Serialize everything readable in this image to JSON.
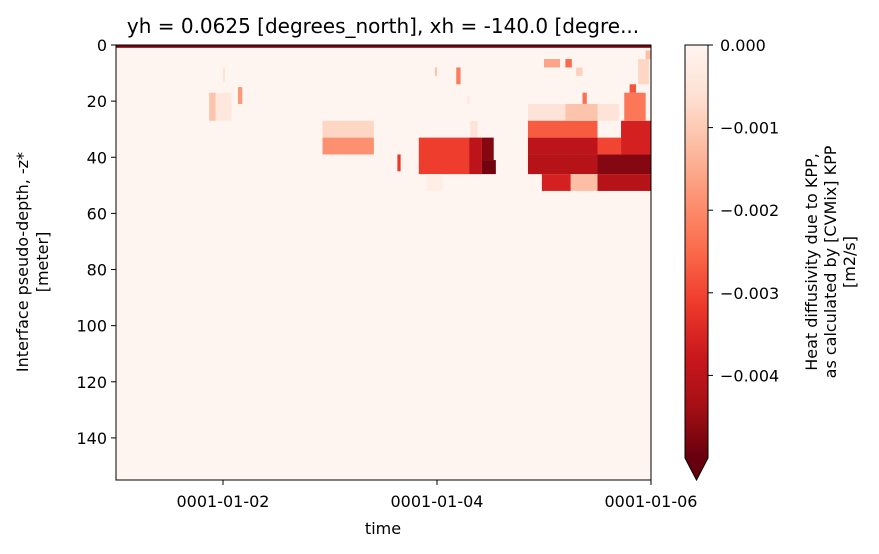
{
  "chart_data": {
    "type": "heatmap",
    "title": "yh = 0.0625 [degrees_north], xh = -140.0 [degre...",
    "xlabel": "time",
    "ylabel_lines": [
      "Interface pseudo-depth, -z*",
      "[meter]"
    ],
    "x_range_days": [
      1.0,
      6.0
    ],
    "y_range": [
      155,
      0
    ],
    "x_ticks": [
      {
        "value": 2,
        "label": "0001-01-02"
      },
      {
        "value": 4,
        "label": "0001-01-04"
      },
      {
        "value": 6,
        "label": "0001-01-06"
      }
    ],
    "y_ticks": [
      0,
      20,
      40,
      60,
      80,
      100,
      120,
      140
    ],
    "y_tick_labels": [
      "0",
      "20",
      "40",
      "60",
      "80",
      "100",
      "120",
      "140"
    ],
    "colorbar": {
      "label_lines": [
        "Heat diffusivity due to KPP,",
        "as calculated by [CVMix] KPP",
        "[m2/s]"
      ],
      "vmin": -0.005,
      "vmax": 0.0,
      "ticks": [
        0.0,
        -0.001,
        -0.002,
        -0.003,
        -0.004
      ],
      "tick_labels": [
        "0.000",
        "−0.001",
        "−0.002",
        "−0.003",
        "−0.004"
      ],
      "extend": "min",
      "colormap": "Reds_r"
    },
    "background_value": 0.0,
    "patches": [
      {
        "t0": 1.0,
        "t1": 6.0,
        "z0": -1,
        "z1": 1,
        "v": -0.0048
      },
      {
        "t0": 1.87,
        "t1": 1.93,
        "z0": 17,
        "z1": 27,
        "v": -0.0011
      },
      {
        "t0": 1.93,
        "t1": 2.08,
        "z0": 17,
        "z1": 27,
        "v": -0.0004
      },
      {
        "t0": 2.14,
        "t1": 2.18,
        "z0": 15,
        "z1": 21,
        "v": -0.0018
      },
      {
        "t0": 2.0,
        "t1": 2.02,
        "z0": 8,
        "z1": 13,
        "v": -0.0005
      },
      {
        "t0": 2.93,
        "t1": 3.41,
        "z0": 27,
        "z1": 33,
        "v": -0.0008
      },
      {
        "t0": 2.93,
        "t1": 3.41,
        "z0": 33,
        "z1": 39,
        "v": -0.0019
      },
      {
        "t0": 3.98,
        "t1": 4.0,
        "z0": 8,
        "z1": 11,
        "v": -0.0011
      },
      {
        "t0": 4.18,
        "t1": 4.22,
        "z0": 8,
        "z1": 14,
        "v": -0.0022
      },
      {
        "t0": 4.28,
        "t1": 4.31,
        "z0": 18,
        "z1": 21,
        "v": -0.0003
      },
      {
        "t0": 4.31,
        "t1": 4.38,
        "z0": 27,
        "z1": 33,
        "v": -0.0005
      },
      {
        "t0": 3.63,
        "t1": 3.66,
        "z0": 39,
        "z1": 45,
        "v": -0.0032
      },
      {
        "t0": 3.83,
        "t1": 4.3,
        "z0": 33,
        "z1": 46,
        "v": -0.0031
      },
      {
        "t0": 4.3,
        "t1": 4.42,
        "z0": 33,
        "z1": 46,
        "v": -0.004
      },
      {
        "t0": 4.42,
        "t1": 4.53,
        "z0": 33,
        "z1": 41,
        "v": -0.0047
      },
      {
        "t0": 4.42,
        "t1": 4.55,
        "z0": 41,
        "z1": 46,
        "v": -0.0049
      },
      {
        "t0": 3.9,
        "t1": 4.05,
        "z0": 46,
        "z1": 52,
        "v": -0.0002
      },
      {
        "t0": 4.85,
        "t1": 5.7,
        "z0": 21,
        "z1": 27,
        "v": -0.0005
      },
      {
        "t0": 4.85,
        "t1": 5.5,
        "z0": 27,
        "z1": 33,
        "v": -0.0027
      },
      {
        "t0": 4.85,
        "t1": 5.5,
        "z0": 33,
        "z1": 39,
        "v": -0.004
      },
      {
        "t0": 4.85,
        "t1": 5.5,
        "z0": 39,
        "z1": 46,
        "v": -0.0041
      },
      {
        "t0": 4.98,
        "t1": 5.25,
        "z0": 46,
        "z1": 52,
        "v": -0.0036
      },
      {
        "t0": 5.25,
        "t1": 5.5,
        "z0": 46,
        "z1": 52,
        "v": -0.0012
      },
      {
        "t0": 5.5,
        "t1": 6.0,
        "z0": 39,
        "z1": 46,
        "v": -0.0047
      },
      {
        "t0": 5.5,
        "t1": 6.0,
        "z0": 46,
        "z1": 52,
        "v": -0.0041
      },
      {
        "t0": 5.72,
        "t1": 6.0,
        "z0": 27,
        "z1": 39,
        "v": -0.0036
      },
      {
        "t0": 5.5,
        "t1": 5.72,
        "z0": 33,
        "z1": 39,
        "v": -0.003
      },
      {
        "t0": 5.75,
        "t1": 5.95,
        "z0": 17,
        "z1": 27,
        "v": -0.0023
      },
      {
        "t0": 5.8,
        "t1": 5.86,
        "z0": 14,
        "z1": 17,
        "v": -0.0028
      },
      {
        "t0": 5.88,
        "t1": 5.98,
        "z0": 5,
        "z1": 14,
        "v": -0.0008
      },
      {
        "t0": 5.0,
        "t1": 5.15,
        "z0": 5,
        "z1": 8,
        "v": -0.0016
      },
      {
        "t0": 5.2,
        "t1": 5.26,
        "z0": 5,
        "z1": 8,
        "v": -0.0025
      },
      {
        "t0": 5.3,
        "t1": 5.36,
        "z0": 8,
        "z1": 11,
        "v": -0.0009
      },
      {
        "t0": 5.36,
        "t1": 5.4,
        "z0": 17,
        "z1": 21,
        "v": -0.0024
      },
      {
        "t0": 5.2,
        "t1": 5.5,
        "z0": 21,
        "z1": 27,
        "v": -0.0011
      },
      {
        "t0": 5.95,
        "t1": 6.0,
        "z0": 2,
        "z1": 5,
        "v": -0.0012
      }
    ]
  }
}
